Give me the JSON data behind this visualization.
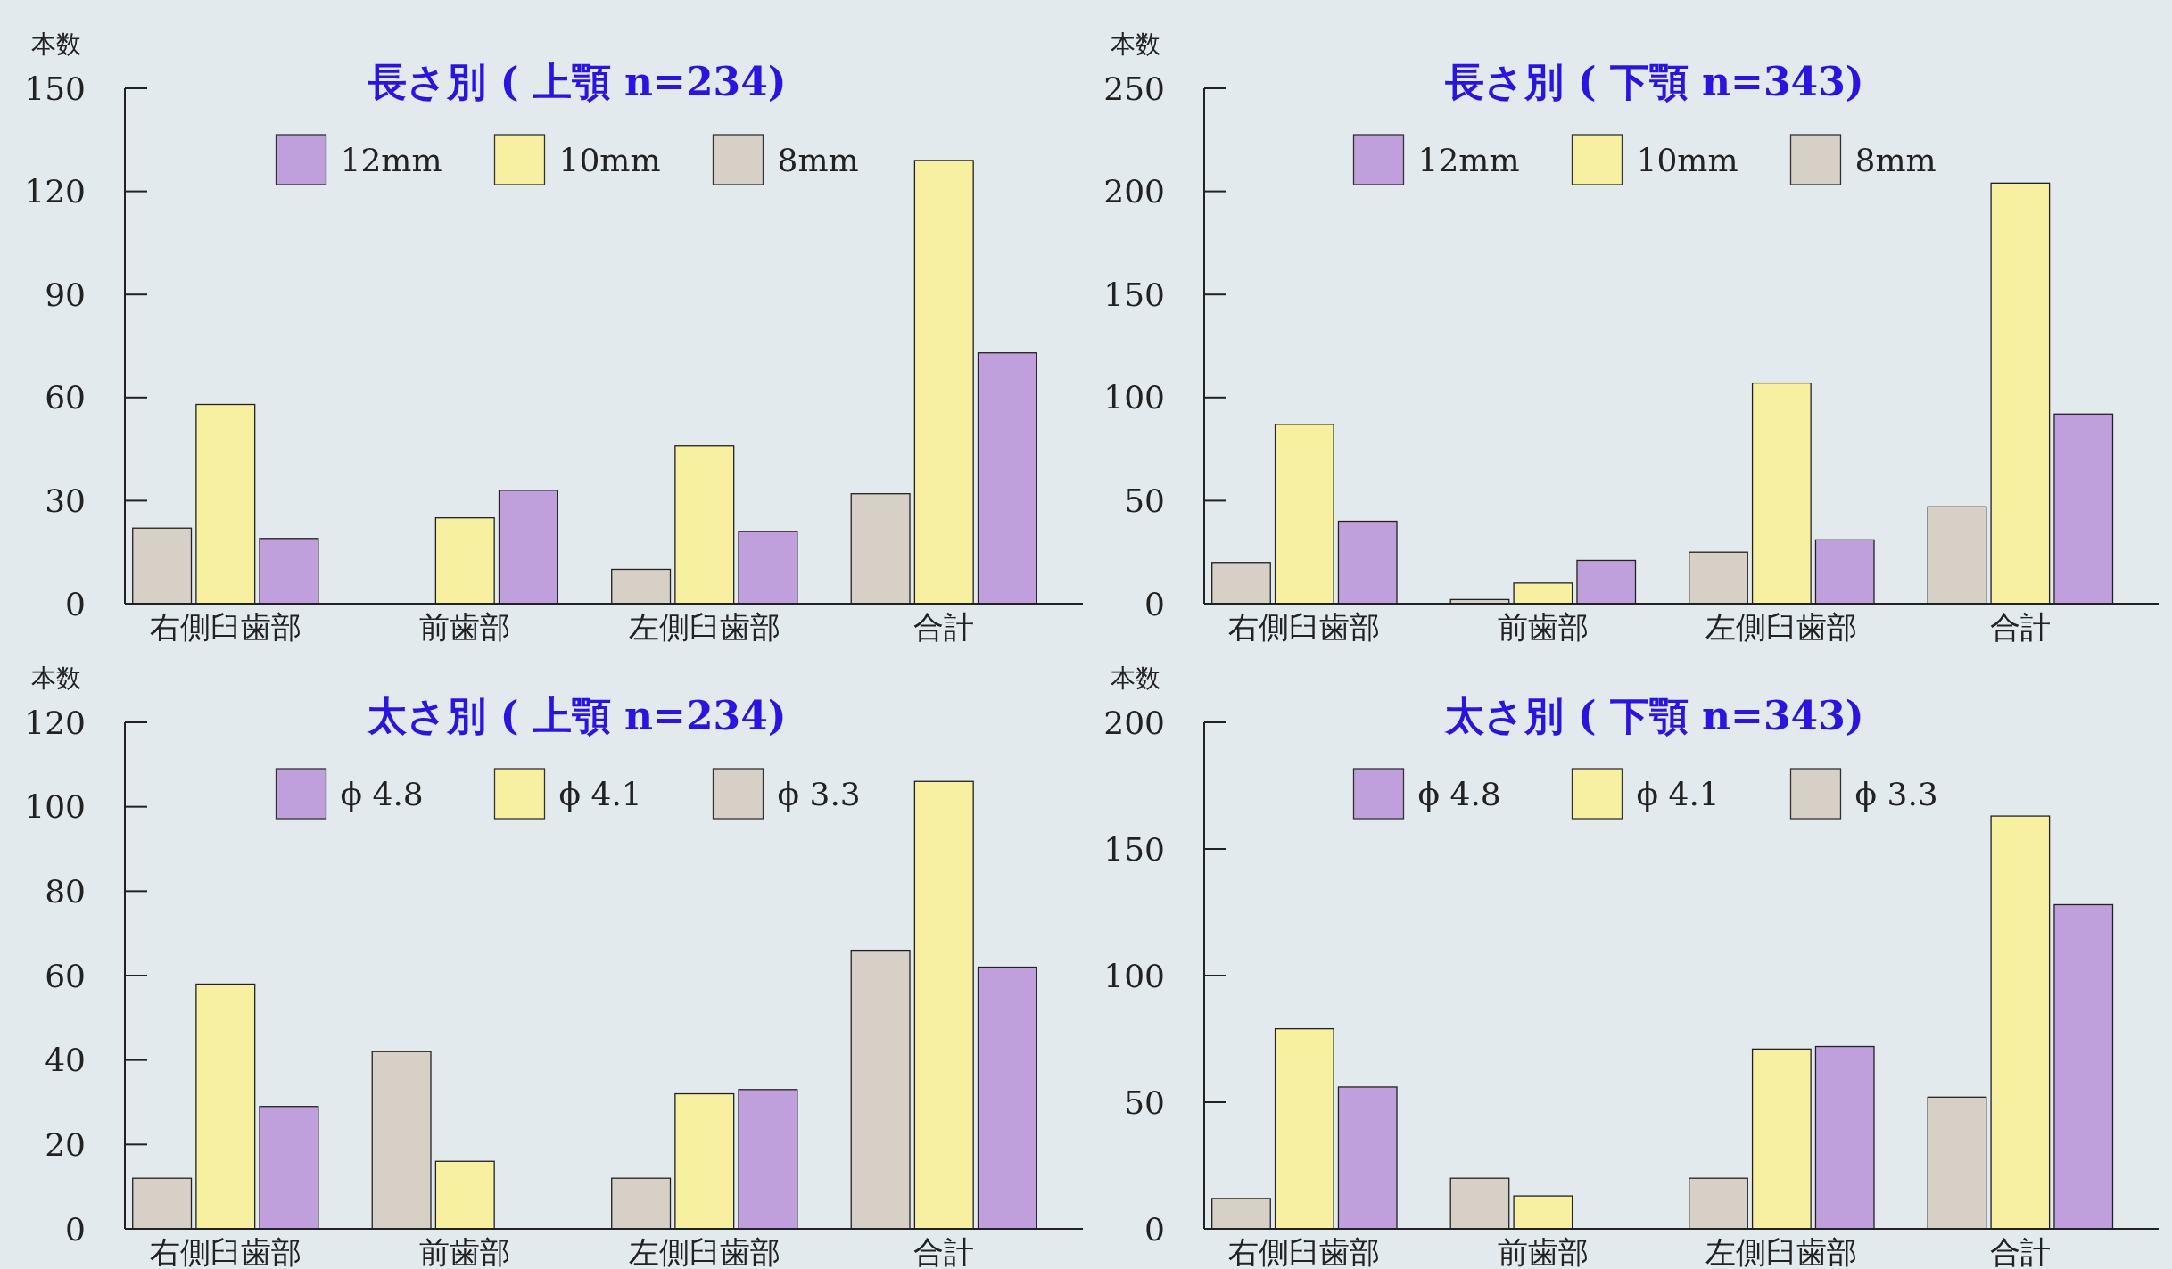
{
  "chart_data": [
    {
      "type": "bar",
      "title": "長さ別 ( 上顎 n=234)",
      "ylabel": "本数",
      "categories": [
        "右側臼歯部",
        "前歯部",
        "左側臼歯部",
        "合計"
      ],
      "ylim": [
        0,
        150
      ],
      "yticks": [
        0,
        30,
        60,
        90,
        120,
        150
      ],
      "legend": "top",
      "grid": false,
      "series": [
        {
          "name": "8mm",
          "color": "#d6d0c6",
          "values": [
            22,
            0,
            10,
            32
          ]
        },
        {
          "name": "10mm",
          "color": "#f7f0a0",
          "values": [
            58,
            25,
            46,
            129
          ]
        },
        {
          "name": "12mm",
          "color": "#c0a0dc",
          "values": [
            19,
            33,
            21,
            73
          ]
        }
      ]
    },
    {
      "type": "bar",
      "title": "長さ別 ( 下顎 n=343)",
      "ylabel": "本数",
      "categories": [
        "右側臼歯部",
        "前歯部",
        "左側臼歯部",
        "合計"
      ],
      "ylim": [
        0,
        250
      ],
      "yticks": [
        0,
        50,
        100,
        150,
        200,
        250
      ],
      "legend": "top",
      "grid": false,
      "series": [
        {
          "name": "8mm",
          "color": "#d6d0c6",
          "values": [
            20,
            2,
            25,
            47
          ]
        },
        {
          "name": "10mm",
          "color": "#f7f0a0",
          "values": [
            87,
            10,
            107,
            204
          ]
        },
        {
          "name": "12mm",
          "color": "#c0a0dc",
          "values": [
            40,
            21,
            31,
            92
          ]
        }
      ]
    },
    {
      "type": "bar",
      "title": "太さ別 ( 上顎 n=234)",
      "ylabel": "本数",
      "categories": [
        "右側臼歯部",
        "前歯部",
        "左側臼歯部",
        "合計"
      ],
      "ylim": [
        0,
        120
      ],
      "yticks": [
        0,
        20,
        40,
        60,
        80,
        100,
        120
      ],
      "legend": "top",
      "grid": false,
      "series": [
        {
          "name": "ϕ 3.3",
          "color": "#d6d0c6",
          "values": [
            12,
            42,
            12,
            66
          ]
        },
        {
          "name": "ϕ 4.1",
          "color": "#f7f0a0",
          "values": [
            58,
            16,
            32,
            106
          ]
        },
        {
          "name": "ϕ 4.8",
          "color": "#c0a0dc",
          "values": [
            29,
            0,
            33,
            62
          ]
        }
      ]
    },
    {
      "type": "bar",
      "title": "太さ別 ( 下顎 n=343)",
      "ylabel": "本数",
      "categories": [
        "右側臼歯部",
        "前歯部",
        "左側臼歯部",
        "合計"
      ],
      "ylim": [
        0,
        200
      ],
      "yticks": [
        0,
        50,
        100,
        150,
        200
      ],
      "legend": "top",
      "grid": false,
      "series": [
        {
          "name": "ϕ 3.3",
          "color": "#d6d0c6",
          "values": [
            12,
            20,
            20,
            52
          ]
        },
        {
          "name": "ϕ 4.1",
          "color": "#f7f0a0",
          "values": [
            79,
            13,
            71,
            163
          ]
        },
        {
          "name": "ϕ 4.8",
          "color": "#c0a0dc",
          "values": [
            56,
            0,
            72,
            128
          ]
        }
      ]
    }
  ]
}
